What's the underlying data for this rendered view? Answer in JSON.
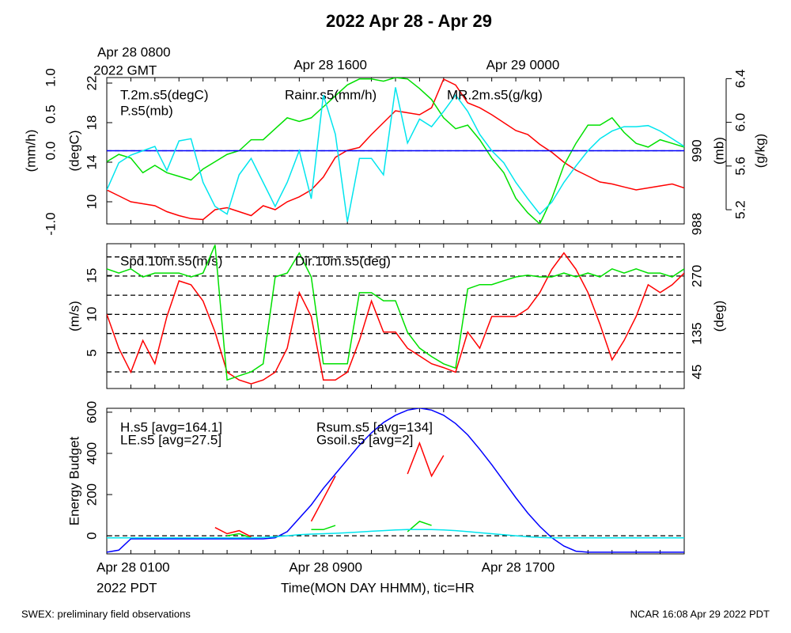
{
  "title": "2022 Apr 28 - Apr 29",
  "footer_left": "SWEX: preliminary field observations",
  "footer_right": "NCAR 16:08 Apr 29 2022 PDT",
  "chart_data": {
    "type": "line",
    "x": [
      0,
      0.5,
      1,
      1.5,
      2,
      2.5,
      3,
      3.5,
      4,
      4.5,
      5,
      5.5,
      6,
      6.5,
      7,
      7.5,
      8,
      8.5,
      9,
      9.5,
      10,
      10.5,
      11,
      11.5,
      12,
      12.5,
      13,
      13.5,
      14,
      14.5,
      15,
      15.5,
      16,
      16.5,
      17,
      17.5,
      18,
      18.5,
      19,
      19.5,
      20,
      20.5,
      21,
      21.5,
      22,
      22.5,
      23,
      23.5,
      24
    ],
    "xlim": [
      0,
      24
    ],
    "xticks": [
      {
        "value": 0,
        "label": "Apr 28 0100"
      },
      {
        "value": 8,
        "label": "Apr 28 0900"
      },
      {
        "value": 16,
        "label": "Apr 28 1700"
      }
    ],
    "x_sublabel": "2022 PDT",
    "x2ticks": [
      {
        "value": 0,
        "label": "Apr 28 0800"
      },
      {
        "value": 8,
        "label": "Apr 28 1600"
      },
      {
        "value": 16,
        "label": "Apr 29 0000"
      }
    ],
    "x2_sublabel": "2022 GMT",
    "minor_xticks": [
      0,
      1,
      2,
      3,
      4,
      5,
      6,
      7,
      8,
      9,
      10,
      11,
      12,
      13,
      14,
      15,
      16,
      17,
      18,
      19,
      20,
      21,
      22,
      23,
      24
    ],
    "xlabel": "Time(MON DAY HHMM), tic=HR",
    "panels": [
      {
        "axes": [
          {
            "label": "(mm/h)",
            "side": "left",
            "lim": [
              -1,
              1
            ],
            "ticks": [
              {
                "value": -1,
                "label": "-1.0"
              },
              {
                "value": 0,
                "label": "0.0"
              },
              0.5,
              {
                "value": 1,
                "label": "1.0"
              }
            ],
            "gridlines": [
              0
            ]
          },
          {
            "label": "(degC)",
            "side": "left",
            "lim": [
              7.76,
              22.56
            ],
            "ticks": [
              10,
              14,
              18,
              22
            ]
          },
          {
            "label": "(mb)",
            "side": "right",
            "lim": [
              988,
              992
            ],
            "ticks": [
              988,
              990
            ]
          },
          {
            "label": "(g/kg)",
            "side": "right",
            "lim": [
              5.07,
              6.41
            ],
            "ticks": [
              5.2,
              5.6,
              {
                "value": 6,
                "label": "6.0"
              },
              6.4
            ]
          }
        ],
        "series": [
          {
            "name": "T.2m.s5(degC)",
            "color": "#ff0000",
            "axis": 1,
            "values": [
              11.2,
              10.6,
              10.0,
              9.8,
              9.6,
              9.0,
              8.6,
              8.3,
              8.2,
              9.2,
              9.4,
              9.0,
              8.6,
              9.6,
              9.2,
              10.0,
              10.5,
              11.2,
              12.5,
              14.5,
              15.2,
              15.5,
              16.8,
              18.0,
              19.2,
              19.0,
              18.8,
              19.5,
              22.4,
              21.8,
              20.0,
              19.5,
              18.8,
              18.0,
              17.2,
              16.8,
              15.8,
              15.0,
              14.0,
              13.2,
              12.6,
              12.0,
              11.8,
              11.5,
              11.2,
              11.4,
              11.6,
              11.8,
              11.4
            ]
          },
          {
            "name": "P.s5(mb)",
            "color": "#00e000",
            "axis": 2,
            "values": [
              989.7,
              989.9,
              989.8,
              989.4,
              989.6,
              989.4,
              989.3,
              989.2,
              989.5,
              989.7,
              989.9,
              990.0,
              990.3,
              990.3,
              990.6,
              990.9,
              990.8,
              990.9,
              991.2,
              991.5,
              991.8,
              991.96,
              991.96,
              991.9,
              992,
              991.96,
              991.7,
              991.4,
              990.9,
              990.6,
              990.7,
              990.3,
              989.8,
              989.4,
              988.7,
              988.3,
              988,
              988.7,
              989.6,
              990.2,
              990.7,
              990.7,
              990.9,
              990.5,
              990.2,
              990.1,
              990.3,
              990.2,
              990.1
            ]
          },
          {
            "name": "Rainr.s5(mm/h)",
            "color": "#0000ff",
            "axis": 0,
            "values": [
              0,
              0,
              0,
              0,
              0,
              0,
              0,
              0,
              0,
              0,
              0,
              0,
              0,
              0,
              0,
              0,
              0,
              0,
              0,
              0,
              0,
              0,
              0,
              0,
              0,
              0,
              0,
              0,
              0,
              0,
              0,
              0,
              0,
              0,
              0,
              0,
              0,
              0,
              0,
              0,
              0,
              0,
              0,
              0,
              0,
              0,
              0,
              0,
              0
            ]
          },
          {
            "name": "MR.2m.s5(g/kg)",
            "color": "#00e5ee",
            "axis": 3,
            "values": [
              5.38,
              5.63,
              5.7,
              5.74,
              5.78,
              5.56,
              5.83,
              5.85,
              5.45,
              5.23,
              5.16,
              5.52,
              5.67,
              5.45,
              5.23,
              5.45,
              5.74,
              5.3,
              6.25,
              5.89,
              5.09,
              5.67,
              5.67,
              5.52,
              6.32,
              5.81,
              6.03,
              5.96,
              6.1,
              6.25,
              6.1,
              5.89,
              5.74,
              5.63,
              5.45,
              5.3,
              5.16,
              5.27,
              5.45,
              5.6,
              5.74,
              5.85,
              5.92,
              5.96,
              5.96,
              5.97,
              5.92,
              5.85,
              5.78
            ]
          }
        ]
      },
      {
        "axes": [
          {
            "label": "(m/s)",
            "side": "left",
            "lim": [
              0.4,
              19.1
            ],
            "ticks": [
              5,
              10,
              15
            ]
          },
          {
            "label": "(deg)",
            "side": "right",
            "lim": [
              6,
              346
            ],
            "ticks": [
              45,
              135,
              270
            ],
            "gridlines": [
              45,
              90,
              135,
              180,
              225,
              270,
              315
            ]
          }
        ],
        "series": [
          {
            "name": "Spd.10m.s5(m/s)",
            "color": "#ff0000",
            "axis": 0,
            "values": [
              10,
              5.6,
              2.5,
              6.6,
              3.6,
              9.7,
              14.3,
              13.8,
              11.7,
              7.7,
              2.5,
              1.5,
              1.0,
              1.5,
              2.5,
              5.6,
              12.8,
              9.7,
              1.5,
              1.5,
              2.5,
              6.6,
              11.7,
              7.7,
              7.7,
              5.6,
              4.6,
              3.6,
              3.1,
              2.5,
              7.7,
              5.6,
              9.7,
              9.7,
              9.7,
              10.7,
              12.8,
              15.8,
              17.9,
              15.8,
              12.8,
              8.7,
              4.1,
              6.6,
              9.7,
              13.8,
              12.8,
              13.8,
              15.3
            ]
          },
          {
            "name": "Dir.10m.s5(deg)",
            "color": "#00e000",
            "axis": 1,
            "values": [
              287,
              277,
              287,
              268,
              277,
              277,
              277,
              268,
              277,
              343,
              26,
              36,
              45,
              64,
              268,
              277,
              324,
              268,
              64,
              64,
              64,
              231,
              231,
              212,
              212,
              138,
              101,
              81,
              64,
              54,
              240,
              250,
              250,
              259,
              268,
              272,
              268,
              268,
              277,
              268,
              277,
              268,
              287,
              277,
              287,
              277,
              277,
              268,
              287
            ]
          }
        ]
      },
      {
        "axes": [
          {
            "label": "Energy Budget",
            "side": "left",
            "lim": [
              -88,
              619
            ],
            "ticks": [
              0,
              200,
              400,
              600
            ],
            "gridlines": [
              0
            ]
          }
        ],
        "series": [
          {
            "name": "H.s5 [avg=164.1]",
            "color": "#ff0000",
            "axis": 0,
            "values": [
              null,
              null,
              null,
              null,
              null,
              null,
              null,
              null,
              null,
              40,
              10,
              25,
              -5,
              null,
              null,
              null,
              null,
              70,
              180,
              290,
              null,
              null,
              null,
              null,
              null,
              300,
              450,
              290,
              390,
              null,
              null,
              null,
              null,
              null,
              null,
              null,
              null,
              null,
              null,
              null,
              null,
              null,
              null,
              null,
              null,
              null,
              null,
              null,
              null
            ]
          },
          {
            "name": "LE.s5 [avg=27.5]",
            "color": "#00e000",
            "axis": 0,
            "values": [
              null,
              null,
              null,
              null,
              null,
              null,
              null,
              null,
              null,
              null,
              0,
              10,
              -10,
              null,
              null,
              null,
              null,
              30,
              30,
              50,
              null,
              null,
              null,
              null,
              null,
              20,
              70,
              50,
              null,
              null,
              null,
              null,
              null,
              null,
              null,
              null,
              null,
              null,
              null,
              null,
              null,
              null,
              null,
              null,
              null,
              null,
              null,
              null,
              null
            ]
          },
          {
            "name": "Rsum.s5 [avg=134]",
            "color": "#0000ff",
            "axis": 0,
            "values": [
              -80,
              -70,
              -15,
              -15,
              -15,
              -15,
              -15,
              -15,
              -15,
              -15,
              -15,
              -15,
              -15,
              -15,
              -10,
              20,
              85,
              150,
              230,
              300,
              370,
              440,
              500,
              550,
              585,
              610,
              620,
              610,
              585,
              545,
              490,
              420,
              345,
              265,
              185,
              110,
              45,
              -10,
              -50,
              -75,
              -80,
              -80,
              -80,
              -80,
              -80,
              -80,
              -80,
              -80,
              -80
            ]
          },
          {
            "name": "Gsoil.s5 [avg=2]",
            "color": "#00e5ee",
            "axis": 0,
            "values": [
              -10,
              -10,
              -10,
              -10,
              -10,
              -10,
              -10,
              -10,
              -10,
              -10,
              -10,
              -10,
              -10,
              -8,
              -5,
              0,
              5,
              8,
              10,
              12,
              15,
              18,
              22,
              25,
              28,
              30,
              30,
              30,
              28,
              25,
              20,
              15,
              10,
              5,
              0,
              -5,
              -8,
              -10,
              -10,
              -10,
              -10,
              -10,
              -10,
              -10,
              -10,
              -10,
              -10,
              -10,
              -10
            ]
          }
        ]
      }
    ]
  }
}
